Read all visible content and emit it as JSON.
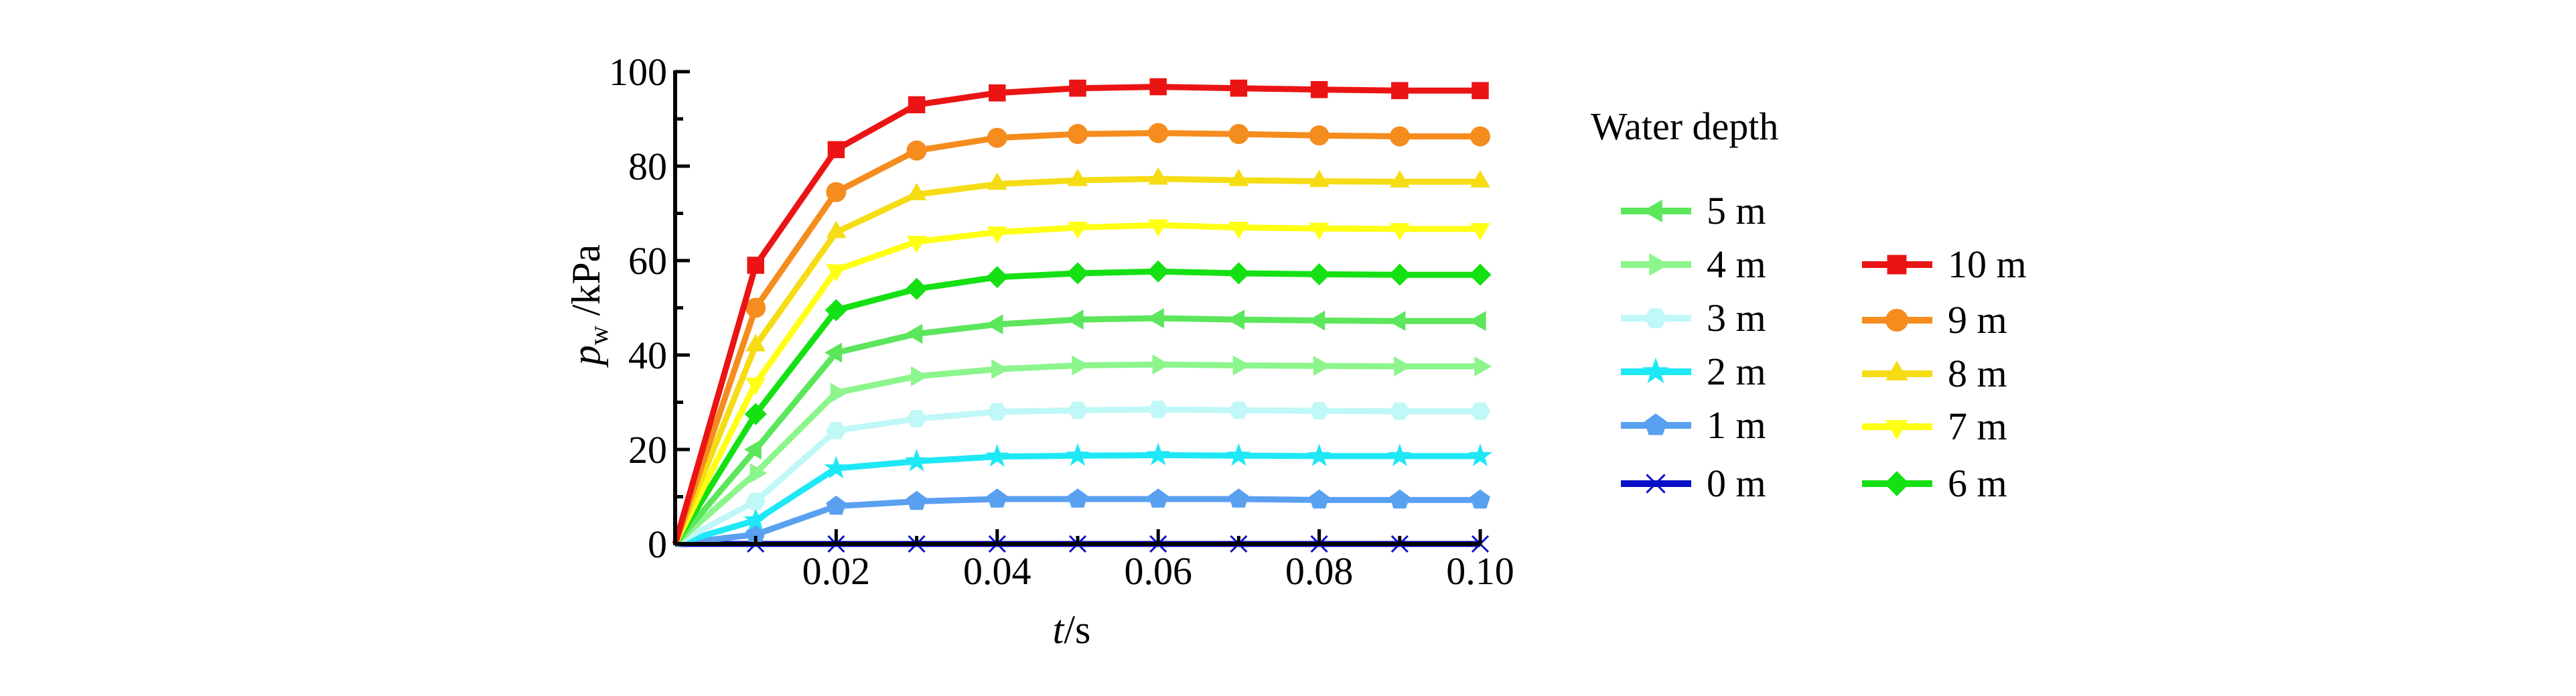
{
  "chart_data": {
    "type": "line",
    "x": [
      0,
      0.01,
      0.02,
      0.03,
      0.04,
      0.05,
      0.06,
      0.07,
      0.08,
      0.09,
      0.1
    ],
    "xlim": [
      0,
      0.1
    ],
    "ylim": [
      0,
      100
    ],
    "xticks": [
      0.02,
      0.04,
      0.06,
      0.08,
      0.1
    ],
    "xtick_labels": [
      "0.02",
      "0.04",
      "0.06",
      "0.08",
      "0.10"
    ],
    "yticks": [
      0,
      20,
      40,
      60,
      80,
      100
    ],
    "ytick_labels": [
      "0",
      "20",
      "40",
      "60",
      "80",
      "100"
    ],
    "xlabel": {
      "main": "t",
      "rest": "/s"
    },
    "ylabel": {
      "main": "p",
      "sub": "w",
      "rest": " /kPa"
    },
    "legend": {
      "title": "Water depth",
      "placement": "right"
    },
    "grid": false,
    "series": [
      {
        "name": "0 m",
        "color": "#0a10c8",
        "marker": "cross",
        "values": [
          0,
          0,
          0,
          0,
          0,
          0,
          0,
          0,
          0,
          0,
          0
        ]
      },
      {
        "name": "1 m",
        "color": "#5aa0f0",
        "marker": "pentagon",
        "values": [
          0,
          2,
          8,
          9,
          9.5,
          9.5,
          9.5,
          9.5,
          9.3,
          9.3,
          9.3
        ]
      },
      {
        "name": "2 m",
        "color": "#1ee8f5",
        "marker": "star",
        "values": [
          0,
          5,
          16,
          17.5,
          18.5,
          18.7,
          18.8,
          18.7,
          18.6,
          18.6,
          18.6
        ]
      },
      {
        "name": "3 m",
        "color": "#c0f7f7",
        "marker": "hexagon",
        "values": [
          0,
          9,
          24,
          26.5,
          28,
          28.3,
          28.5,
          28.3,
          28.2,
          28.1,
          28.1
        ]
      },
      {
        "name": "4 m",
        "color": "#8cf58c",
        "marker": "triangle-right",
        "values": [
          0,
          15,
          32,
          35.5,
          37,
          37.8,
          38,
          37.8,
          37.7,
          37.6,
          37.6
        ]
      },
      {
        "name": "5 m",
        "color": "#5ce65c",
        "marker": "triangle-left",
        "values": [
          0,
          20,
          40.5,
          44.5,
          46.5,
          47.5,
          47.8,
          47.5,
          47.3,
          47.2,
          47.2
        ]
      },
      {
        "name": "6 m",
        "color": "#14e014",
        "marker": "diamond",
        "values": [
          0,
          27.5,
          49.5,
          54,
          56.5,
          57.3,
          57.7,
          57.3,
          57.1,
          57,
          57
        ]
      },
      {
        "name": "7 m",
        "color": "#ffff14",
        "marker": "triangle-down",
        "values": [
          0,
          34,
          58,
          64,
          66,
          67,
          67.5,
          67,
          66.8,
          66.7,
          66.7
        ]
      },
      {
        "name": "8 m",
        "color": "#f5dc14",
        "marker": "triangle-up",
        "values": [
          0,
          42,
          66,
          74,
          76.2,
          77,
          77.3,
          77,
          76.8,
          76.7,
          76.7
        ]
      },
      {
        "name": "9 m",
        "color": "#f58c1e",
        "marker": "circle",
        "values": [
          0,
          50,
          74.5,
          83.3,
          86,
          86.8,
          87,
          86.8,
          86.5,
          86.3,
          86.3
        ]
      },
      {
        "name": "10 m",
        "color": "#eb1414",
        "marker": "square",
        "values": [
          0,
          59,
          83.5,
          93,
          95.5,
          96.5,
          96.8,
          96.5,
          96.2,
          96,
          96
        ]
      }
    ],
    "legend_columns": [
      [
        "5 m",
        "4 m",
        "3 m",
        "2 m",
        "1 m",
        "0 m"
      ],
      [
        "10 m",
        "9 m",
        "8 m",
        "7 m",
        "6 m"
      ]
    ]
  }
}
